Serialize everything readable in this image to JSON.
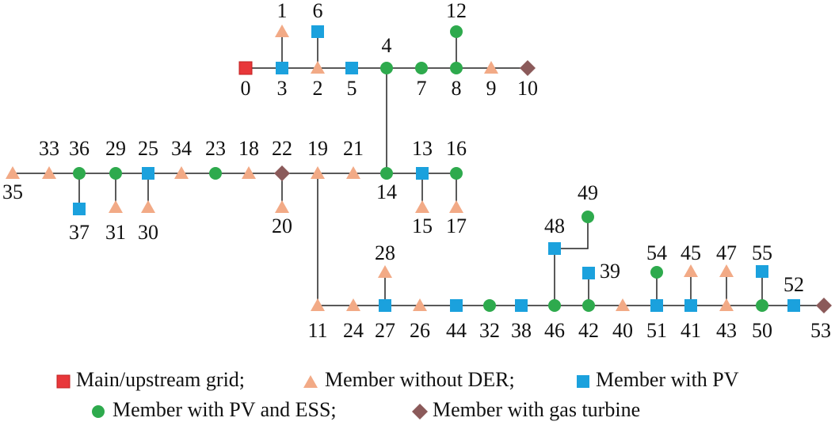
{
  "nodes": [
    "0",
    "1",
    "2",
    "3",
    "4",
    "5",
    "6",
    "7",
    "8",
    "9",
    "10",
    "11",
    "12",
    "13",
    "14",
    "15",
    "16",
    "17",
    "18",
    "19",
    "20",
    "21",
    "22",
    "23",
    "24",
    "25",
    "26",
    "27",
    "28",
    "29",
    "30",
    "31",
    "32",
    "33",
    "34",
    "35",
    "36",
    "37",
    "38",
    "39",
    "40",
    "41",
    "42",
    "43",
    "44",
    "45",
    "46",
    "47",
    "48",
    "49",
    "50",
    "51",
    "52",
    "53",
    "54",
    "55"
  ],
  "legend": [
    "Main/upstream grid;",
    "Member without DER;",
    "Member with PV",
    "Member with PV and ESS;",
    "Member with gas turbine"
  ]
}
